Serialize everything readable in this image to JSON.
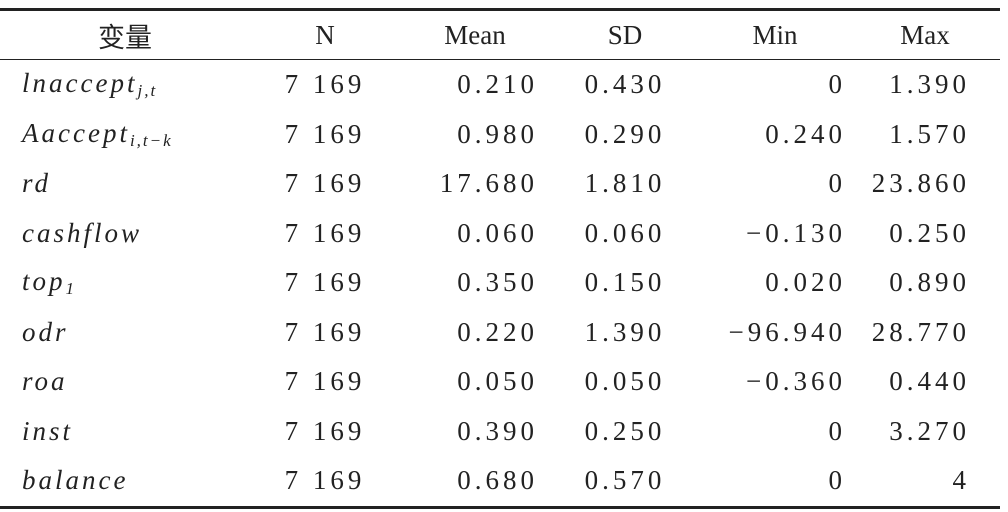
{
  "table": {
    "header": [
      "变量",
      "N",
      "Mean",
      "SD",
      "Min",
      "Max"
    ],
    "rows": [
      {
        "variable": {
          "name": "lnaccept",
          "sub": "j,t"
        },
        "values": [
          "7 169",
          "0.210",
          "0.430",
          "0",
          "1.390"
        ]
      },
      {
        "variable": {
          "name": "Aaccept",
          "sub": "i,t−k"
        },
        "values": [
          "7 169",
          "0.980",
          "0.290",
          "0.240",
          "1.570"
        ]
      },
      {
        "variable": {
          "name": "rd"
        },
        "values": [
          "7 169",
          "17.680",
          "1.810",
          "0",
          "23.860"
        ]
      },
      {
        "variable": {
          "name": "cashflow"
        },
        "values": [
          "7 169",
          "0.060",
          "0.060",
          "−0.130",
          "0.250"
        ]
      },
      {
        "variable": {
          "name": "top",
          "sub": "1"
        },
        "values": [
          "7 169",
          "0.350",
          "0.150",
          "0.020",
          "0.890"
        ]
      },
      {
        "variable": {
          "name": "odr"
        },
        "values": [
          "7 169",
          "0.220",
          "1.390",
          "−96.940",
          "28.770"
        ]
      },
      {
        "variable": {
          "name": "roa"
        },
        "values": [
          "7 169",
          "0.050",
          "0.050",
          "−0.360",
          "0.440"
        ]
      },
      {
        "variable": {
          "name": "inst"
        },
        "values": [
          "7 169",
          "0.390",
          "0.250",
          "0",
          "3.270"
        ]
      },
      {
        "variable": {
          "name": "balance"
        },
        "values": [
          "7 169",
          "0.680",
          "0.570",
          "0",
          "4"
        ]
      }
    ]
  }
}
